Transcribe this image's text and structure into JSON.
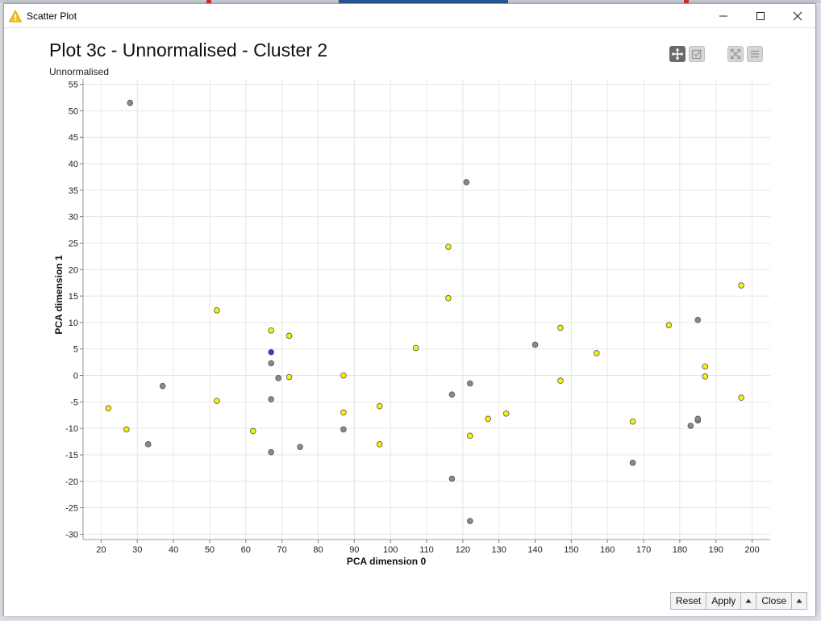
{
  "window": {
    "title": "Scatter Plot",
    "warning_icon": "warning-triangle-icon",
    "controls": [
      "minimize-icon",
      "maximize-icon",
      "close-icon"
    ]
  },
  "toolbar": {
    "icons": [
      "pan-icon",
      "select-icon",
      "fullscreen-icon",
      "menu-icon"
    ]
  },
  "footer": {
    "reset_label": "Reset",
    "apply_label": "Apply",
    "close_label": "Close"
  },
  "colors": {
    "point_gray": "#8a8a8a",
    "point_yellow": "#f2f20a",
    "point_blue": "#2a3fd8",
    "grid": "#e6e6e6"
  },
  "chart_data": {
    "type": "scatter",
    "title": "Plot 3c - Unnormalised - Cluster 2",
    "subtitle": "Unnormalised",
    "xlabel": "PCA dimension 0",
    "ylabel": "PCA dimension 1",
    "xlim": [
      15,
      205
    ],
    "ylim": [
      -31,
      56
    ],
    "xticks": [
      20,
      30,
      40,
      50,
      60,
      70,
      80,
      90,
      100,
      110,
      120,
      130,
      140,
      150,
      160,
      170,
      180,
      190,
      200
    ],
    "yticks": [
      -30,
      -25,
      -20,
      -15,
      -10,
      -5,
      0,
      5,
      10,
      15,
      20,
      25,
      30,
      35,
      40,
      45,
      50,
      55
    ],
    "grid": true,
    "series": [
      {
        "color": "#8a8a8a",
        "points": [
          [
            28,
            51.5
          ],
          [
            37,
            -2
          ],
          [
            33,
            -13
          ],
          [
            67,
            2.3
          ],
          [
            69,
            -0.5
          ],
          [
            67,
            -4.5
          ],
          [
            67,
            -14.5
          ],
          [
            75,
            -13.5
          ],
          [
            87,
            -10.2
          ],
          [
            121,
            36.5
          ],
          [
            117,
            -3.6
          ],
          [
            122,
            -1.5
          ],
          [
            117,
            -19.5
          ],
          [
            122,
            -27.5
          ],
          [
            140,
            5.8
          ],
          [
            167,
            -16.5
          ],
          [
            185,
            10.5
          ],
          [
            183,
            -9.5
          ],
          [
            185,
            -8.5
          ],
          [
            185,
            -8.2
          ]
        ]
      },
      {
        "color": "#f2f20a",
        "points": [
          [
            22,
            -6.2
          ],
          [
            27,
            -10.2
          ],
          [
            52,
            12.3
          ],
          [
            52,
            -4.8
          ],
          [
            62,
            -10.5
          ],
          [
            67,
            8.5
          ],
          [
            72,
            7.5
          ],
          [
            72,
            -0.3
          ],
          [
            87,
            0
          ],
          [
            87,
            -7
          ],
          [
            97,
            -5.8
          ],
          [
            97,
            -13
          ],
          [
            107,
            5.2
          ],
          [
            116,
            24.3
          ],
          [
            116,
            14.6
          ],
          [
            122,
            -11.4
          ],
          [
            127,
            -8.2
          ],
          [
            132,
            -7.2
          ],
          [
            147,
            9
          ],
          [
            147,
            -1
          ],
          [
            157,
            4.2
          ],
          [
            167,
            -8.7
          ],
          [
            177,
            9.5
          ],
          [
            187,
            1.7
          ],
          [
            187,
            -0.2
          ],
          [
            197,
            17
          ],
          [
            197,
            -4.2
          ]
        ]
      },
      {
        "color": "#2a3fd8",
        "points": [
          [
            67,
            4.4
          ]
        ]
      }
    ]
  }
}
